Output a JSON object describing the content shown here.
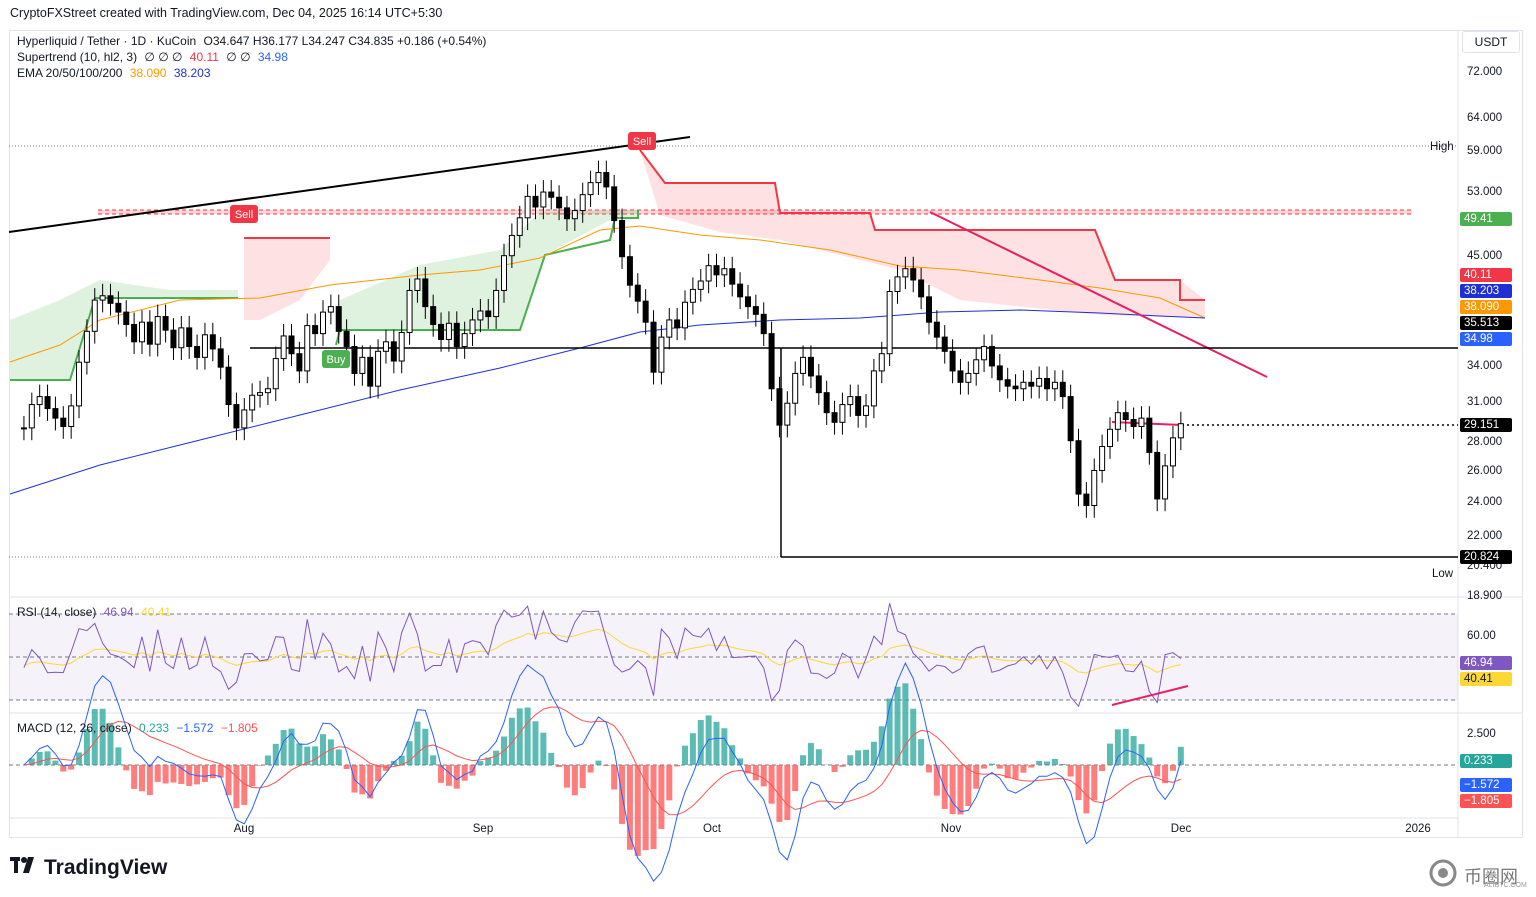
{
  "header": "CryptoFXStreet created with TradingView.com, Dec 04, 2025 16:14 UTC+5:30",
  "legend": {
    "symbol": "Hyperliquid / Tether · 1D · KuCoin",
    "ohlc": "O34.647  H36.177  L34.247  C34.835  +0.186 (+0.54%)",
    "supertrend_label": "Supertrend (10, hl2, 3)",
    "supertrend_glyphs": "∅  ∅  ∅",
    "supertrend_v1": "40.11",
    "supertrend_glyphs2": "∅  ∅",
    "supertrend_v2": "34.98",
    "ema_label": "EMA 20/50/100/200",
    "ema_v1": "38.090",
    "ema_v2": "38.203",
    "rsi_label": "RSI (14, close)",
    "rsi_v1": "46.94",
    "rsi_v2": "40.41",
    "macd_label": "MACD (12, 26, close)",
    "macd_v1": "0.233",
    "macd_v2": "−1.572",
    "macd_v3": "−1.805"
  },
  "unit": "USDT",
  "price_axis": [
    "72.000",
    "64.000",
    "59.000",
    "53.000",
    "45.000",
    "34.000",
    "31.000",
    "28.000",
    "26.000",
    "24.000",
    "22.000",
    "20.400",
    "18.900"
  ],
  "rsi_axis": [
    "60.00"
  ],
  "macd_axis": [
    "2.500"
  ],
  "time_axis": [
    "Aug",
    "Sep",
    "Oct",
    "Nov",
    "Dec",
    "2026"
  ],
  "badges": {
    "resistance": "49.41",
    "st_red": "40.11",
    "ema100": "38.203",
    "ema50": "38.090",
    "close": "35.513",
    "st_green": "34.98",
    "low_line": "29.151",
    "low_mark": "20.824",
    "rsi": "46.94",
    "rsi_ma": "40.41",
    "macd_hist": "0.233",
    "macd_line": "−1.572",
    "macd_signal": "−1.805"
  },
  "marks": {
    "high": "High",
    "low": "Low",
    "sell": "Sell",
    "buy": "Buy"
  },
  "colors": {
    "up": "#ffffff",
    "down": "#000000",
    "st_red": "#f23645",
    "st_green": "#4caf50",
    "ema50": "#ff9800",
    "ema100": "#1e2fd6",
    "rsi": "#7e57c2",
    "rsi_ma": "#fdd835",
    "macd": "#2962ff",
    "signal": "#ff5252",
    "hist_up": "#26a69a",
    "hist_down": "#ff5252",
    "divergence": "#e91e63"
  },
  "footer": {
    "logo": "TradingView",
    "watermark": "币圈网",
    "watermark_sub": "ALIBTC.COM"
  },
  "chart_data": {
    "type": "candlestick",
    "title": "Hyperliquid / Tether · 1D · KuCoin",
    "x_range": [
      "2025-07-01",
      "2026-01-06"
    ],
    "y_log": true,
    "ylim": [
      18.9,
      80
    ],
    "close_series": [
      34.5,
      36.2,
      36.8,
      35.9,
      35.2,
      34.6,
      36.1,
      39.5,
      42.1,
      44.9,
      45.3,
      44.6,
      43.8,
      42.7,
      41.2,
      42.9,
      41.0,
      43.4,
      42.2,
      40.7,
      42.4,
      40.8,
      39.9,
      41.8,
      40.6,
      39.1,
      36.2,
      34.5,
      35.8,
      36.9,
      37.1,
      37.4,
      39.8,
      41.7,
      40.2,
      38.8,
      42.6,
      41.9,
      43.8,
      44.3,
      42.1,
      40.8,
      38.6,
      39.9,
      37.6,
      40.4,
      41.2,
      39.6,
      42.0,
      45.8,
      46.9,
      44.3,
      42.7,
      41.4,
      42.8,
      40.8,
      41.9,
      43.1,
      43.9,
      43.4,
      45.8,
      49.2,
      51.3,
      53.2,
      55.6,
      54.4,
      56.1,
      55.5,
      54.3,
      53.1,
      54.0,
      55.8,
      57.2,
      58.4,
      56.7,
      52.9,
      49.1,
      46.3,
      44.8,
      42.9,
      38.7,
      41.6,
      43.1,
      42.4,
      44.7,
      45.9,
      46.7,
      48.2,
      47.3,
      47.9,
      46.4,
      45.2,
      44.3,
      43.6,
      41.9,
      37.4,
      34.7,
      36.3,
      38.6,
      39.9,
      38.4,
      37.1,
      35.6,
      34.9,
      36.2,
      36.8,
      35.4,
      36.1,
      38.8,
      40.2,
      45.7,
      47.1,
      47.9,
      46.8,
      45.2,
      42.9,
      41.6,
      40.4,
      38.8,
      37.9,
      38.6,
      39.7,
      40.8,
      39.2,
      38.1,
      37.6,
      37.4,
      37.9,
      37.6,
      38.2,
      37.4,
      37.9,
      36.8,
      33.6,
      30.1,
      29.4,
      31.6,
      33.2,
      34.4,
      35.6,
      35.1,
      34.6,
      35.2,
      32.8,
      29.8,
      31.9,
      33.8,
      34.8
    ],
    "supertrend_levels": {
      "upper": 40.11,
      "lower": 34.98
    },
    "ema_50": 38.09,
    "ema_100": 38.203,
    "horizontal_levels": [
      49.41,
      34.98,
      29.151,
      20.824
    ],
    "high": 59.0,
    "low": 20.824,
    "rsi": {
      "value": 46.94,
      "ma": 40.41,
      "upper": 70,
      "middle": 50,
      "lower": 30
    },
    "macd": {
      "macd": -1.572,
      "signal": -1.805,
      "histogram": 0.233
    },
    "annotations": [
      "Sell",
      "Buy",
      "Sell",
      "High",
      "Low"
    ]
  }
}
